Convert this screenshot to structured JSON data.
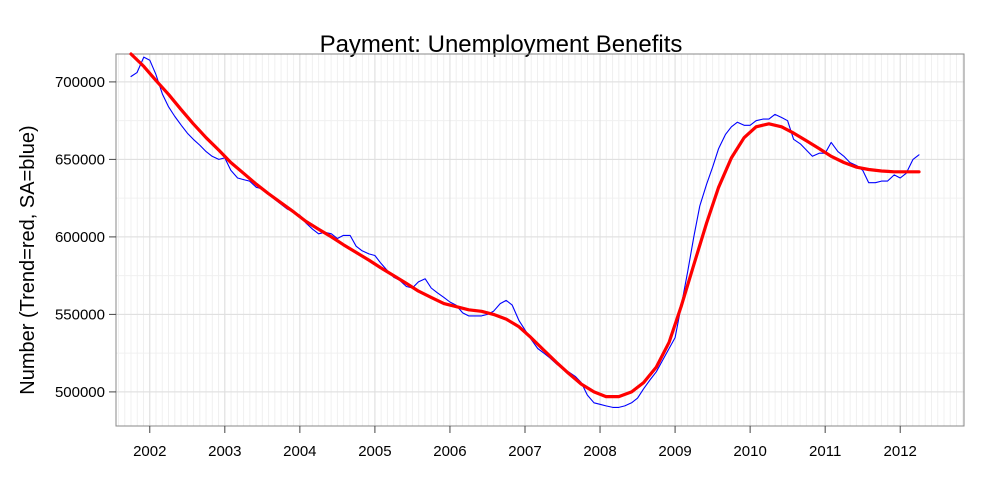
{
  "chart_data": {
    "type": "line",
    "title": "Payment: Unemployment Benefits",
    "xlabel": "",
    "ylabel": "Number (Trend=red, SA=blue)",
    "xlim": [
      2001.55,
      2012.85
    ],
    "ylim": [
      478000,
      718000
    ],
    "x_ticks": [
      2002,
      2003,
      2004,
      2005,
      2006,
      2007,
      2008,
      2009,
      2010,
      2011,
      2012
    ],
    "y_ticks": [
      500000,
      550000,
      600000,
      650000,
      700000
    ],
    "grid": true,
    "series": [
      {
        "color": "#0000ff",
        "points": [
          [
            2001.75,
            703500
          ],
          [
            2001.83,
            706000
          ],
          [
            2001.92,
            716000
          ],
          [
            2002.0,
            714000
          ],
          [
            2002.08,
            705000
          ],
          [
            2002.17,
            692000
          ],
          [
            2002.25,
            684000
          ],
          [
            2002.33,
            678000
          ],
          [
            2002.42,
            672000
          ],
          [
            2002.5,
            667000
          ],
          [
            2002.58,
            663000
          ],
          [
            2002.67,
            659000
          ],
          [
            2002.75,
            655000
          ],
          [
            2002.83,
            652000
          ],
          [
            2002.92,
            650000
          ],
          [
            2003.0,
            651000
          ],
          [
            2003.08,
            643000
          ],
          [
            2003.17,
            638000
          ],
          [
            2003.25,
            637000
          ],
          [
            2003.33,
            636000
          ],
          [
            2003.42,
            632000
          ],
          [
            2003.5,
            631000
          ],
          [
            2003.58,
            628000
          ],
          [
            2003.67,
            624000
          ],
          [
            2003.75,
            621000
          ],
          [
            2003.83,
            618000
          ],
          [
            2003.92,
            616000
          ],
          [
            2004.0,
            614000
          ],
          [
            2004.08,
            609000
          ],
          [
            2004.17,
            605000
          ],
          [
            2004.25,
            602000
          ],
          [
            2004.33,
            603000
          ],
          [
            2004.42,
            602000
          ],
          [
            2004.5,
            599000
          ],
          [
            2004.58,
            601000
          ],
          [
            2004.67,
            601000
          ],
          [
            2004.75,
            594000
          ],
          [
            2004.83,
            591000
          ],
          [
            2004.92,
            589000
          ],
          [
            2005.0,
            588000
          ],
          [
            2005.08,
            583000
          ],
          [
            2005.17,
            578000
          ],
          [
            2005.25,
            574000
          ],
          [
            2005.33,
            572000
          ],
          [
            2005.42,
            568000
          ],
          [
            2005.5,
            567000
          ],
          [
            2005.58,
            571000
          ],
          [
            2005.67,
            573000
          ],
          [
            2005.75,
            567000
          ],
          [
            2005.83,
            564000
          ],
          [
            2005.92,
            561000
          ],
          [
            2006.0,
            558000
          ],
          [
            2006.08,
            556000
          ],
          [
            2006.17,
            551000
          ],
          [
            2006.25,
            549000
          ],
          [
            2006.33,
            549000
          ],
          [
            2006.42,
            549000
          ],
          [
            2006.5,
            550000
          ],
          [
            2006.58,
            552000
          ],
          [
            2006.67,
            557000
          ],
          [
            2006.75,
            559000
          ],
          [
            2006.83,
            556000
          ],
          [
            2006.92,
            546000
          ],
          [
            2007.0,
            540000
          ],
          [
            2007.08,
            534000
          ],
          [
            2007.17,
            528000
          ],
          [
            2007.25,
            525000
          ],
          [
            2007.33,
            522000
          ],
          [
            2007.42,
            518000
          ],
          [
            2007.5,
            515000
          ],
          [
            2007.58,
            513000
          ],
          [
            2007.67,
            510000
          ],
          [
            2007.75,
            506000
          ],
          [
            2007.83,
            498000
          ],
          [
            2007.92,
            493000
          ],
          [
            2008.0,
            492000
          ],
          [
            2008.08,
            491000
          ],
          [
            2008.17,
            490000
          ],
          [
            2008.25,
            490000
          ],
          [
            2008.33,
            491000
          ],
          [
            2008.42,
            493000
          ],
          [
            2008.5,
            496000
          ],
          [
            2008.58,
            502000
          ],
          [
            2008.67,
            508000
          ],
          [
            2008.75,
            513000
          ],
          [
            2008.83,
            520000
          ],
          [
            2008.92,
            528000
          ],
          [
            2009.0,
            535000
          ],
          [
            2009.08,
            555000
          ],
          [
            2009.17,
            578000
          ],
          [
            2009.25,
            600000
          ],
          [
            2009.33,
            620000
          ],
          [
            2009.42,
            634000
          ],
          [
            2009.5,
            645000
          ],
          [
            2009.58,
            657000
          ],
          [
            2009.67,
            666000
          ],
          [
            2009.75,
            671000
          ],
          [
            2009.83,
            674000
          ],
          [
            2009.92,
            672000
          ],
          [
            2010.0,
            672000
          ],
          [
            2010.08,
            675000
          ],
          [
            2010.17,
            676000
          ],
          [
            2010.25,
            676000
          ],
          [
            2010.33,
            679000
          ],
          [
            2010.42,
            677000
          ],
          [
            2010.5,
            675000
          ],
          [
            2010.58,
            663000
          ],
          [
            2010.67,
            660000
          ],
          [
            2010.75,
            656000
          ],
          [
            2010.83,
            652000
          ],
          [
            2010.92,
            654000
          ],
          [
            2011.0,
            654000
          ],
          [
            2011.08,
            661000
          ],
          [
            2011.17,
            655000
          ],
          [
            2011.25,
            652000
          ],
          [
            2011.33,
            648000
          ],
          [
            2011.42,
            646000
          ],
          [
            2011.5,
            643000
          ],
          [
            2011.58,
            635000
          ],
          [
            2011.67,
            635000
          ],
          [
            2011.75,
            636000
          ],
          [
            2011.83,
            636000
          ],
          [
            2011.92,
            640000
          ],
          [
            2012.0,
            638000
          ],
          [
            2012.08,
            641000
          ],
          [
            2012.17,
            650000
          ],
          [
            2012.25,
            653000
          ]
        ]
      },
      {
        "color": "#ff0000",
        "points": [
          [
            2001.75,
            718000
          ],
          [
            2001.92,
            710000
          ],
          [
            2002.08,
            701000
          ],
          [
            2002.25,
            692000
          ],
          [
            2002.42,
            682000
          ],
          [
            2002.58,
            673000
          ],
          [
            2002.75,
            664000
          ],
          [
            2002.92,
            656000
          ],
          [
            2003.08,
            648000
          ],
          [
            2003.25,
            641000
          ],
          [
            2003.42,
            634000
          ],
          [
            2003.58,
            628000
          ],
          [
            2003.75,
            622000
          ],
          [
            2003.92,
            616000
          ],
          [
            2004.08,
            610000
          ],
          [
            2004.25,
            605000
          ],
          [
            2004.42,
            600000
          ],
          [
            2004.58,
            595000
          ],
          [
            2004.75,
            590000
          ],
          [
            2004.92,
            585000
          ],
          [
            2005.08,
            580000
          ],
          [
            2005.25,
            575000
          ],
          [
            2005.42,
            570000
          ],
          [
            2005.58,
            565000
          ],
          [
            2005.75,
            561000
          ],
          [
            2005.92,
            557000
          ],
          [
            2006.08,
            555000
          ],
          [
            2006.25,
            553000
          ],
          [
            2006.42,
            552000
          ],
          [
            2006.58,
            550000
          ],
          [
            2006.75,
            547000
          ],
          [
            2006.92,
            542000
          ],
          [
            2007.08,
            535000
          ],
          [
            2007.25,
            527000
          ],
          [
            2007.42,
            519000
          ],
          [
            2007.58,
            512000
          ],
          [
            2007.75,
            505000
          ],
          [
            2007.92,
            500000
          ],
          [
            2008.08,
            497000
          ],
          [
            2008.25,
            497000
          ],
          [
            2008.42,
            500000
          ],
          [
            2008.58,
            506000
          ],
          [
            2008.75,
            516000
          ],
          [
            2008.92,
            532000
          ],
          [
            2009.08,
            555000
          ],
          [
            2009.25,
            582000
          ],
          [
            2009.42,
            609000
          ],
          [
            2009.58,
            632000
          ],
          [
            2009.75,
            651000
          ],
          [
            2009.92,
            664000
          ],
          [
            2010.08,
            671000
          ],
          [
            2010.25,
            673000
          ],
          [
            2010.42,
            671000
          ],
          [
            2010.58,
            667000
          ],
          [
            2010.75,
            662000
          ],
          [
            2010.92,
            657000
          ],
          [
            2011.08,
            652000
          ],
          [
            2011.25,
            648000
          ],
          [
            2011.42,
            645000
          ],
          [
            2011.58,
            643500
          ],
          [
            2011.75,
            642500
          ],
          [
            2011.92,
            642000
          ],
          [
            2012.08,
            642000
          ],
          [
            2012.25,
            642000
          ]
        ]
      }
    ]
  }
}
